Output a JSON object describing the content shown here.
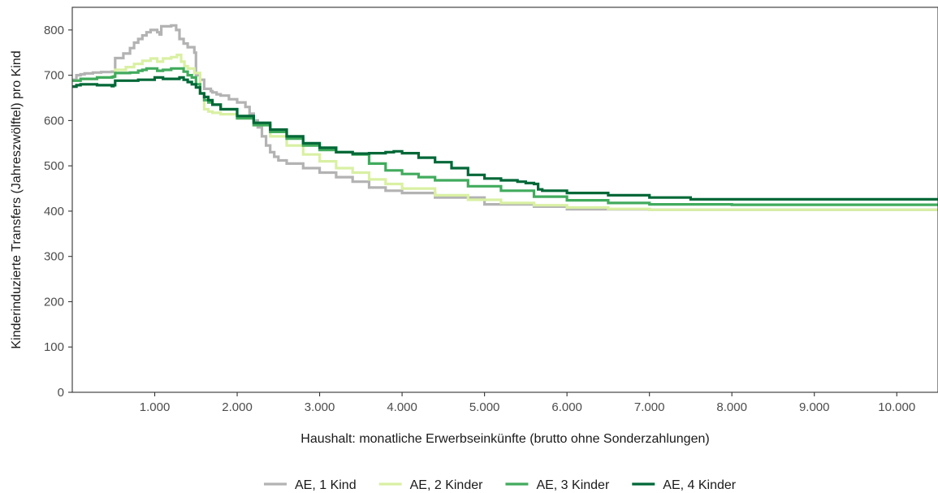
{
  "chart_data": {
    "type": "line",
    "step": true,
    "xlabel": "Haushalt: monatliche Erwerbseinkünfte (brutto ohne Sonderzahlungen)",
    "ylabel": "Kinderinduzierte Transfers (Jahreszwölftel) pro Kind",
    "xlim": [
      0,
      10500
    ],
    "ylim": [
      0,
      850
    ],
    "x_ticks": [
      1000,
      2000,
      3000,
      4000,
      5000,
      6000,
      7000,
      8000,
      9000,
      10000
    ],
    "x_tick_labels": [
      "1.000",
      "2.000",
      "3.000",
      "4.000",
      "5.000",
      "6.000",
      "7.000",
      "8.000",
      "9.000",
      "10.000"
    ],
    "y_ticks": [
      0,
      100,
      200,
      300,
      400,
      500,
      600,
      700,
      800
    ],
    "y_tick_labels": [
      "0",
      "100",
      "200",
      "300",
      "400",
      "500",
      "600",
      "700",
      "800"
    ],
    "grid": false,
    "legend_position": "bottom",
    "series": [
      {
        "name": "AE, 1 Kind",
        "color": "#b3b3b3",
        "x": [
          0,
          50,
          100,
          150,
          250,
          350,
          480,
          500,
          520,
          620,
          700,
          750,
          800,
          850,
          900,
          950,
          1030,
          1060,
          1080,
          1100,
          1200,
          1260,
          1300,
          1350,
          1400,
          1480,
          1500,
          1550,
          1600,
          1680,
          1700,
          1750,
          1800,
          1900,
          2000,
          2100,
          2150,
          2200,
          2250,
          2300,
          2350,
          2400,
          2450,
          2500,
          2600,
          2800,
          3000,
          3200,
          3400,
          3600,
          3800,
          4000,
          4400,
          5000,
          5600,
          6000,
          6500,
          7000,
          10500
        ],
        "y": [
          690,
          700,
          702,
          704,
          706,
          707,
          708,
          708,
          738,
          748,
          760,
          772,
          780,
          788,
          795,
          800,
          795,
          790,
          808,
          808,
          810,
          800,
          780,
          770,
          762,
          750,
          700,
          690,
          670,
          665,
          662,
          658,
          655,
          647,
          640,
          630,
          615,
          600,
          585,
          565,
          545,
          530,
          520,
          512,
          505,
          495,
          485,
          475,
          465,
          452,
          445,
          440,
          430,
          415,
          410,
          404,
          404,
          403,
          403
        ]
      },
      {
        "name": "AE, 2 Kinder",
        "color": "#d9f0a3",
        "x": [
          0,
          100,
          300,
          480,
          500,
          520,
          650,
          750,
          850,
          950,
          1030,
          1100,
          1200,
          1270,
          1320,
          1360,
          1400,
          1480,
          1550,
          1600,
          1650,
          1700,
          1800,
          2000,
          2200,
          2400,
          2600,
          2800,
          3000,
          3200,
          3400,
          3600,
          3800,
          4000,
          4400,
          4800,
          5200,
          5600,
          6000,
          6500,
          7000,
          10500
        ],
        "y": [
          688,
          692,
          695,
          696,
          698,
          712,
          718,
          725,
          732,
          737,
          730,
          737,
          740,
          745,
          730,
          720,
          715,
          705,
          660,
          625,
          620,
          617,
          614,
          605,
          590,
          565,
          545,
          525,
          510,
          495,
          485,
          470,
          460,
          450,
          435,
          425,
          418,
          413,
          408,
          405,
          403,
          403
        ]
      },
      {
        "name": "AE, 3 Kinder",
        "color": "#41ab5d",
        "x": [
          0,
          100,
          300,
          480,
          500,
          520,
          700,
          800,
          850,
          900,
          950,
          1030,
          1100,
          1200,
          1300,
          1350,
          1400,
          1450,
          1500,
          1550,
          1600,
          1650,
          1700,
          1800,
          2000,
          2200,
          2400,
          2600,
          2800,
          3000,
          3200,
          3400,
          3600,
          3800,
          4000,
          4200,
          4400,
          4800,
          5200,
          5600,
          6000,
          6500,
          7000,
          8000,
          10500
        ],
        "y": [
          688,
          692,
          695,
          696,
          697,
          705,
          706,
          710,
          712,
          715,
          715,
          710,
          712,
          715,
          715,
          708,
          700,
          695,
          680,
          660,
          645,
          640,
          635,
          625,
          605,
          590,
          575,
          560,
          545,
          535,
          530,
          525,
          505,
          490,
          482,
          475,
          468,
          455,
          445,
          432,
          424,
          418,
          415,
          414,
          414
        ]
      },
      {
        "name": "AE, 4 Kinder",
        "color": "#006837",
        "x": [
          0,
          50,
          100,
          200,
          300,
          480,
          500,
          520,
          700,
          800,
          900,
          1000,
          1100,
          1200,
          1300,
          1350,
          1400,
          1450,
          1500,
          1550,
          1600,
          1650,
          1700,
          1800,
          2000,
          2200,
          2400,
          2600,
          2800,
          3000,
          3200,
          3400,
          3600,
          3800,
          3900,
          4000,
          4200,
          4400,
          4600,
          4800,
          5000,
          5200,
          5400,
          5500,
          5600,
          5650,
          5700,
          6000,
          6500,
          7000,
          7500,
          10500
        ],
        "y": [
          675,
          678,
          680,
          680,
          678,
          676,
          678,
          688,
          688,
          690,
          690,
          695,
          692,
          692,
          695,
          690,
          685,
          680,
          673,
          660,
          652,
          645,
          635,
          625,
          610,
          595,
          580,
          565,
          550,
          540,
          530,
          527,
          528,
          530,
          532,
          528,
          518,
          508,
          495,
          480,
          472,
          468,
          465,
          462,
          460,
          448,
          445,
          440,
          435,
          430,
          426,
          426
        ]
      }
    ]
  }
}
